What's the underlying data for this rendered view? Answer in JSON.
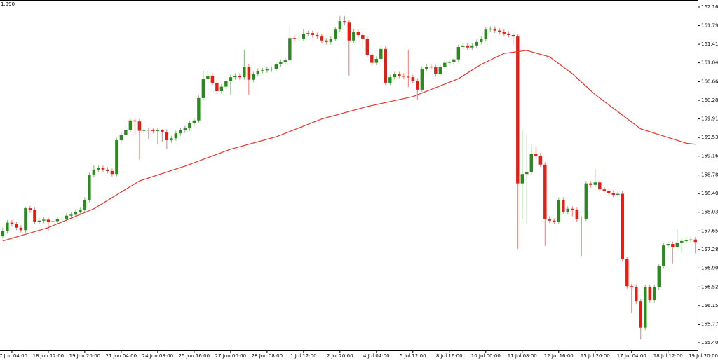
{
  "chart_data": {
    "type": "candlestick",
    "corner_label": "1.990",
    "up_color": "#2b8a1e",
    "down_color": "#ec1b12",
    "ma_color": "#e8322c",
    "xlim": [
      -0.6,
      152.5
    ],
    "ylim": [
      155.244,
      162.306
    ],
    "yticks": [
      162.165,
      {
        "value": 161.79,
        "label": "161.790"
      },
      161.415,
      {
        "value": 161.04,
        "label": "161.040"
      },
      {
        "value": 160.66,
        "label": "160.660"
      },
      160.285,
      {
        "value": 159.91,
        "label": "159.910"
      },
      159.535,
      {
        "value": 159.16,
        "label": "159.160"
      },
      {
        "value": 158.78,
        "label": "158.780"
      },
      158.405,
      {
        "value": 158.03,
        "label": "158.030"
      },
      157.655,
      {
        "value": 157.28,
        "label": "157.280"
      },
      156.905,
      156.525,
      {
        "value": 156.15,
        "label": "156.150"
      },
      155.775,
      {
        "value": 155.4,
        "label": "155.400"
      }
    ],
    "xticks": [
      {
        "value": 2,
        "label": "7 Jun 04:00"
      },
      {
        "value": 10,
        "label": "18 Jun 12:00"
      },
      {
        "value": 18,
        "label": "19 Jun 20:00"
      },
      {
        "value": 26,
        "label": "21 Jun 04:00"
      },
      {
        "value": 34,
        "label": "24 Jun 08:00"
      },
      {
        "value": 42,
        "label": "25 Jun 16:00"
      },
      {
        "value": 50,
        "label": "27 Jun 00:00"
      },
      {
        "value": 58,
        "label": "28 Jun 08:00"
      },
      {
        "value": 66,
        "label": "1 Jul 12:00"
      },
      {
        "value": 74,
        "label": "2 Jul 20:00"
      },
      {
        "value": 82,
        "label": "4 Jul 04:00"
      },
      {
        "value": 90,
        "label": "5 Jul 12:00"
      },
      {
        "value": 98,
        "label": "8 Jul 16:00"
      },
      {
        "value": 106,
        "label": "10 Jul 00:00"
      },
      {
        "value": 114,
        "label": "11 Jul 08:00"
      },
      {
        "value": 122,
        "label": "12 Jul 16:00"
      },
      {
        "value": 130,
        "label": "15 Jul 20:00"
      },
      {
        "value": 138,
        "label": "17 Jul 04:00"
      },
      {
        "value": 146,
        "label": "18 Jul 12:00"
      },
      {
        "value": 154,
        "label": "19 Jul 20:00"
      }
    ],
    "candles": [
      [
        157.56,
        157.72,
        157.5,
        157.65
      ],
      [
        157.65,
        157.87,
        157.6,
        157.82
      ],
      [
        157.82,
        157.87,
        157.74,
        157.79
      ],
      [
        157.79,
        157.84,
        157.67,
        157.72
      ],
      [
        157.72,
        157.77,
        157.62,
        157.67
      ],
      [
        157.67,
        158.14,
        157.62,
        158.11
      ],
      [
        158.11,
        158.16,
        158.02,
        158.07
      ],
      [
        158.07,
        158.12,
        157.79,
        157.84
      ],
      [
        157.84,
        157.91,
        157.79,
        157.86
      ],
      [
        157.86,
        157.93,
        157.81,
        157.88
      ],
      [
        157.88,
        157.93,
        157.66,
        157.83
      ],
      [
        157.83,
        157.9,
        157.78,
        157.85
      ],
      [
        157.85,
        157.94,
        157.8,
        157.89
      ],
      [
        157.89,
        157.95,
        157.84,
        157.9
      ],
      [
        157.9,
        158.01,
        157.85,
        157.96
      ],
      [
        157.96,
        158.03,
        157.91,
        157.98
      ],
      [
        157.98,
        158.09,
        157.93,
        158.04
      ],
      [
        158.04,
        158.12,
        157.99,
        158.07
      ],
      [
        158.07,
        158.33,
        158.02,
        158.28
      ],
      [
        158.28,
        158.83,
        158.23,
        158.78
      ],
      [
        158.78,
        158.98,
        158.73,
        158.89
      ],
      [
        158.89,
        158.97,
        158.84,
        158.92
      ],
      [
        158.92,
        158.97,
        158.84,
        158.89
      ],
      [
        158.89,
        158.94,
        158.81,
        158.86
      ],
      [
        158.86,
        158.91,
        158.75,
        158.8
      ],
      [
        158.8,
        159.53,
        158.75,
        159.48
      ],
      [
        159.48,
        159.64,
        159.43,
        159.59
      ],
      [
        159.59,
        159.8,
        159.54,
        159.69
      ],
      [
        159.69,
        159.93,
        159.64,
        159.88
      ],
      [
        159.88,
        159.93,
        159.6,
        159.86
      ],
      [
        159.86,
        159.91,
        159.09,
        159.67
      ],
      [
        159.67,
        159.74,
        159.62,
        159.69
      ],
      [
        159.69,
        159.73,
        159.5,
        159.68
      ],
      [
        159.68,
        159.72,
        159.62,
        159.67
      ],
      [
        159.67,
        159.73,
        159.4,
        159.68
      ],
      [
        159.68,
        159.7,
        159.45,
        159.65
      ],
      [
        159.65,
        159.7,
        159.3,
        159.48
      ],
      [
        159.48,
        159.57,
        159.43,
        159.52
      ],
      [
        159.52,
        159.67,
        159.47,
        159.62
      ],
      [
        159.62,
        159.73,
        159.57,
        159.68
      ],
      [
        159.68,
        159.77,
        159.63,
        159.72
      ],
      [
        159.72,
        159.87,
        159.67,
        159.82
      ],
      [
        159.82,
        159.93,
        159.77,
        159.88
      ],
      [
        159.88,
        160.38,
        159.83,
        160.33
      ],
      [
        160.33,
        160.88,
        160.28,
        160.72
      ],
      [
        160.72,
        160.88,
        160.67,
        160.78
      ],
      [
        160.78,
        160.83,
        160.59,
        160.64
      ],
      [
        160.64,
        160.69,
        160.4,
        160.47
      ],
      [
        160.47,
        160.61,
        160.42,
        160.56
      ],
      [
        160.56,
        160.72,
        160.51,
        160.67
      ],
      [
        160.67,
        160.8,
        160.4,
        160.75
      ],
      [
        160.75,
        160.83,
        160.7,
        160.78
      ],
      [
        160.78,
        160.83,
        160.7,
        160.75
      ],
      [
        160.75,
        161.3,
        160.7,
        160.96
      ],
      [
        160.96,
        161.01,
        160.4,
        160.7
      ],
      [
        160.7,
        160.86,
        160.65,
        160.81
      ],
      [
        160.81,
        160.93,
        160.76,
        160.88
      ],
      [
        160.88,
        160.94,
        160.83,
        160.89
      ],
      [
        160.89,
        160.96,
        160.84,
        160.91
      ],
      [
        160.91,
        160.97,
        160.86,
        160.92
      ],
      [
        160.92,
        161.06,
        160.87,
        161.01
      ],
      [
        161.01,
        161.11,
        160.96,
        161.06
      ],
      [
        161.06,
        161.14,
        161.01,
        161.09
      ],
      [
        161.09,
        161.79,
        161.04,
        161.54
      ],
      [
        161.54,
        161.59,
        161.47,
        161.52
      ],
      [
        161.52,
        161.58,
        161.47,
        161.53
      ],
      [
        161.53,
        161.72,
        161.48,
        161.63
      ],
      [
        161.63,
        161.69,
        161.58,
        161.64
      ],
      [
        161.64,
        161.69,
        161.55,
        161.6
      ],
      [
        161.6,
        161.65,
        161.52,
        161.57
      ],
      [
        161.57,
        161.62,
        161.44,
        161.49
      ],
      [
        161.49,
        161.54,
        161.41,
        161.46
      ],
      [
        161.46,
        161.58,
        161.41,
        161.53
      ],
      [
        161.53,
        161.76,
        161.48,
        161.71
      ],
      [
        161.71,
        161.98,
        161.66,
        161.88
      ],
      [
        161.88,
        161.98,
        161.8,
        161.85
      ],
      [
        161.85,
        161.9,
        160.78,
        161.49
      ],
      [
        161.49,
        161.72,
        161.44,
        161.67
      ],
      [
        161.67,
        161.72,
        161.55,
        161.6
      ],
      [
        161.6,
        161.65,
        161.35,
        161.53
      ],
      [
        161.53,
        161.58,
        161.15,
        161.2
      ],
      [
        161.2,
        161.25,
        160.99,
        161.04
      ],
      [
        161.04,
        161.17,
        160.99,
        161.12
      ],
      [
        161.12,
        161.37,
        161.07,
        161.32
      ],
      [
        161.32,
        161.37,
        160.59,
        160.64
      ],
      [
        160.64,
        160.8,
        160.59,
        160.75
      ],
      [
        160.75,
        160.86,
        160.7,
        160.81
      ],
      [
        160.81,
        160.86,
        160.73,
        160.78
      ],
      [
        160.78,
        160.83,
        160.71,
        160.76
      ],
      [
        160.76,
        161.3,
        160.55,
        160.75
      ],
      [
        160.75,
        160.8,
        160.63,
        160.68
      ],
      [
        160.68,
        160.73,
        160.3,
        160.5
      ],
      [
        160.5,
        160.97,
        160.45,
        160.92
      ],
      [
        160.92,
        161.01,
        160.87,
        160.96
      ],
      [
        160.96,
        161.01,
        160.9,
        160.95
      ],
      [
        160.95,
        161.0,
        160.76,
        160.81
      ],
      [
        160.81,
        161.0,
        160.76,
        160.95
      ],
      [
        160.95,
        161.09,
        160.9,
        161.04
      ],
      [
        161.04,
        161.11,
        160.99,
        161.06
      ],
      [
        161.06,
        161.16,
        161.01,
        161.11
      ],
      [
        161.11,
        161.41,
        161.06,
        161.36
      ],
      [
        161.36,
        161.44,
        161.31,
        161.39
      ],
      [
        161.39,
        161.44,
        161.3,
        161.35
      ],
      [
        161.35,
        161.44,
        161.3,
        161.39
      ],
      [
        161.39,
        161.51,
        161.34,
        161.46
      ],
      [
        161.46,
        161.57,
        161.41,
        161.52
      ],
      [
        161.52,
        161.76,
        161.47,
        161.71
      ],
      [
        161.71,
        161.78,
        161.66,
        161.73
      ],
      [
        161.73,
        161.78,
        161.64,
        161.69
      ],
      [
        161.69,
        161.74,
        161.61,
        161.66
      ],
      [
        161.66,
        161.71,
        161.58,
        161.63
      ],
      [
        161.63,
        161.68,
        161.55,
        161.6
      ],
      [
        161.6,
        161.65,
        161.4,
        161.57
      ],
      [
        161.57,
        161.62,
        157.29,
        158.61
      ],
      [
        158.61,
        159.7,
        157.9,
        158.8
      ],
      [
        158.8,
        159.6,
        157.8,
        158.84
      ],
      [
        158.84,
        159.4,
        158.79,
        159.2
      ],
      [
        159.2,
        159.35,
        159.1,
        159.17
      ],
      [
        159.17,
        159.22,
        158.94,
        158.99
      ],
      [
        158.99,
        159.04,
        157.35,
        157.9
      ],
      [
        157.9,
        157.95,
        157.81,
        157.86
      ],
      [
        157.86,
        157.91,
        157.79,
        157.84
      ],
      [
        157.84,
        158.33,
        157.79,
        158.28
      ],
      [
        158.28,
        158.33,
        157.99,
        158.04
      ],
      [
        158.04,
        158.15,
        157.99,
        158.1
      ],
      [
        158.1,
        158.15,
        157.95,
        158.07
      ],
      [
        158.07,
        158.12,
        157.84,
        157.89
      ],
      [
        157.89,
        157.95,
        157.15,
        157.9
      ],
      [
        157.9,
        158.66,
        157.85,
        158.61
      ],
      [
        158.61,
        158.66,
        158.53,
        158.58
      ],
      [
        158.58,
        158.9,
        158.53,
        158.63
      ],
      [
        158.63,
        158.68,
        158.44,
        158.49
      ],
      [
        158.49,
        158.54,
        158.41,
        158.46
      ],
      [
        158.46,
        158.51,
        158.37,
        158.42
      ],
      [
        158.42,
        158.47,
        158.33,
        158.38
      ],
      [
        158.38,
        158.45,
        158.33,
        158.4
      ],
      [
        158.4,
        158.45,
        157.03,
        157.08
      ],
      [
        157.08,
        157.13,
        156.49,
        156.54
      ],
      [
        156.54,
        156.59,
        156.0,
        156.52
      ],
      [
        156.52,
        156.57,
        156.18,
        156.23
      ],
      [
        156.23,
        156.28,
        155.47,
        155.7
      ],
      [
        155.7,
        156.57,
        155.65,
        156.52
      ],
      [
        156.52,
        156.57,
        156.21,
        156.26
      ],
      [
        156.26,
        156.57,
        156.21,
        156.52
      ],
      [
        156.52,
        156.99,
        156.47,
        156.94
      ],
      [
        156.94,
        157.41,
        156.89,
        157.36
      ],
      [
        157.36,
        157.44,
        157.31,
        157.39
      ],
      [
        157.39,
        157.44,
        157.0,
        157.33
      ],
      [
        157.33,
        157.7,
        157.28,
        157.42
      ],
      [
        157.42,
        157.5,
        157.2,
        157.45
      ],
      [
        157.45,
        157.51,
        157.4,
        157.46
      ],
      [
        157.46,
        157.55,
        157.41,
        157.48
      ],
      [
        157.48,
        157.53,
        157.2,
        157.43
      ]
    ],
    "moving_average": {
      "x": [
        0,
        10,
        20,
        30,
        40,
        50,
        60,
        70,
        80,
        90,
        100,
        105,
        110,
        115,
        120,
        125,
        130,
        140,
        150,
        152
      ],
      "values": [
        157.45,
        157.72,
        158.1,
        158.66,
        158.96,
        159.3,
        159.55,
        159.91,
        160.16,
        160.36,
        160.72,
        161.01,
        161.23,
        161.29,
        161.16,
        160.82,
        160.4,
        159.71,
        159.42,
        159.4
      ]
    }
  }
}
